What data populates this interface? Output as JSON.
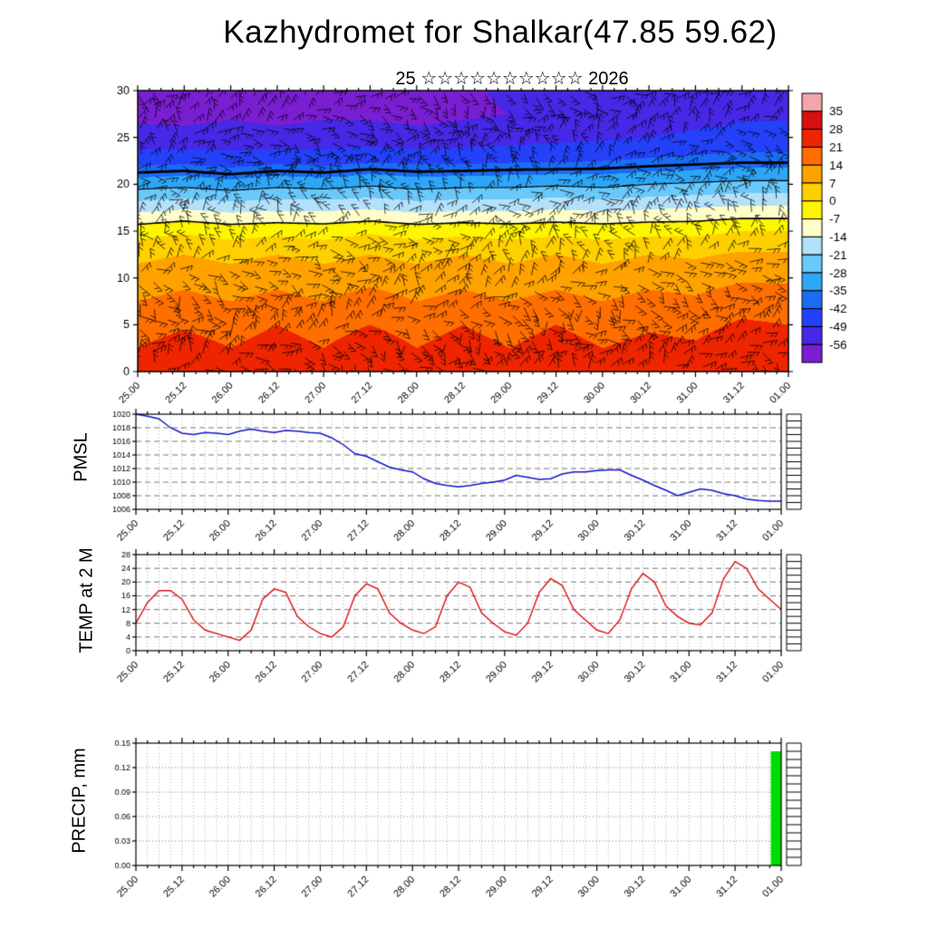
{
  "page": {
    "title": "Kazhydromet for Shalkar(47.85 59.62)",
    "subtitle": "25 ☆☆☆☆☆☆☆☆☆☆ 2026"
  },
  "panels": {
    "pmsl_label": "PMSL",
    "temp_label": "TEMP at 2 M",
    "precip_label": "PRECIP, mm"
  },
  "time_labels": [
    "25.00",
    "25.12",
    "26.00",
    "26.12",
    "27.00",
    "27.12",
    "28.00",
    "28.12",
    "29.00",
    "29.12",
    "30.00",
    "30.12",
    "31.00",
    "31.12",
    "01.00"
  ],
  "chart_data": [
    {
      "type": "heatmap",
      "name": "temperature-height-cross-section",
      "ylim": [
        0,
        30
      ],
      "y_ticks": [
        0,
        5,
        10,
        15,
        20,
        25,
        30
      ],
      "times": [
        "25.00",
        "25.12",
        "26.00",
        "26.12",
        "27.00",
        "27.12",
        "28.00",
        "28.12",
        "29.00",
        "29.12",
        "30.00",
        "30.12",
        "31.00",
        "31.12",
        "01.00"
      ],
      "levels": [
        0,
        2.5,
        5,
        7.5,
        10,
        12.5,
        15,
        17.5,
        20,
        22.5,
        25,
        27.5,
        30
      ],
      "values": [
        [
          24,
          27,
          23,
          27,
          24,
          28,
          24,
          27,
          24,
          27,
          24,
          26,
          25,
          28,
          27
        ],
        [
          21,
          24,
          21,
          24,
          21,
          25,
          21,
          24,
          21,
          24,
          21,
          23,
          22,
          25,
          24
        ],
        [
          18,
          20,
          18,
          21,
          18,
          21,
          18,
          21,
          18,
          21,
          18,
          20,
          19,
          22,
          21
        ],
        [
          14,
          16,
          14,
          16,
          14,
          17,
          14,
          16,
          14,
          16,
          14,
          16,
          15,
          18,
          17
        ],
        [
          10,
          12,
          10,
          12,
          10,
          12,
          10,
          12,
          10,
          12,
          10,
          12,
          11,
          13,
          13
        ],
        [
          5,
          7,
          5,
          7,
          5,
          7,
          5,
          7,
          5,
          7,
          5,
          7,
          6,
          8,
          8
        ],
        [
          -3,
          -1,
          -3,
          -2,
          -3,
          -1,
          -3,
          -2,
          -3,
          -2,
          -3,
          -2,
          -2,
          0,
          0
        ],
        [
          -17,
          -15,
          -17,
          -16,
          -16,
          -15,
          -17,
          -16,
          -16,
          -15,
          -16,
          -15,
          -14,
          -13,
          -13
        ],
        [
          -31,
          -30,
          -32,
          -30,
          -31,
          -29,
          -31,
          -30,
          -30,
          -29,
          -30,
          -28,
          -27,
          -26,
          -26
        ],
        [
          -45,
          -44,
          -46,
          -44,
          -45,
          -43,
          -44,
          -44,
          -43,
          -43,
          -42,
          -41,
          -40,
          -39,
          -39
        ],
        [
          -53,
          -54,
          -53,
          -54,
          -53,
          -53,
          -54,
          -53,
          -52,
          -51,
          -50,
          -49,
          -48,
          -47,
          -47
        ],
        [
          -58,
          -58,
          -57,
          -58,
          -57,
          -57,
          -58,
          -57,
          -56,
          -55,
          -53,
          -52,
          -51,
          -50,
          -50
        ],
        [
          -57,
          -58,
          -57,
          -58,
          -57,
          -57,
          -58,
          -57,
          -55,
          -54,
          -52,
          -51,
          -50,
          -49,
          -49
        ]
      ],
      "thresholds": [
        -56,
        -49,
        -42,
        -35,
        -28,
        -21,
        -14,
        -7,
        0,
        7,
        14,
        21,
        28,
        35
      ],
      "colors_cold_to_warm": [
        "#7a1ed2",
        "#4628e6",
        "#2441fa",
        "#1b6cf5",
        "#2ea6f7",
        "#6ac8fa",
        "#b4e1fa",
        "#fffdc8",
        "#fff500",
        "#ffd000",
        "#ffa200",
        "#ff6e00",
        "#ee2500",
        "#d90f0f",
        "#f2a6aa"
      ],
      "colorbar_tick_labels": [
        "35",
        "28",
        "21",
        "14",
        "7",
        "0",
        "-7",
        "-14",
        "-21",
        "-28",
        "-35",
        "-42",
        "-49",
        "-56"
      ],
      "contours": [
        -7,
        -28,
        -38
      ],
      "overlay": "wind-barbs"
    },
    {
      "type": "line",
      "name": "PMSL",
      "color": "#1414cc",
      "ylim": [
        1006,
        1020
      ],
      "y_ticks": [
        1006,
        1008,
        1010,
        1012,
        1014,
        1016,
        1018,
        1020
      ],
      "y_tick_labels": [
        "1006",
        "1008",
        "1010",
        "1012",
        "1014",
        "1016",
        "1018",
        "1020"
      ],
      "x_step_hours": 3,
      "right_divisions": 14,
      "values": [
        1020,
        1019.7,
        1019.3,
        1018,
        1017.2,
        1017,
        1017.3,
        1017.2,
        1017,
        1017.5,
        1017.8,
        1017.5,
        1017.3,
        1017.6,
        1017.5,
        1017.3,
        1017.2,
        1016.5,
        1015.5,
        1014.2,
        1013.8,
        1013,
        1012.2,
        1011.8,
        1011.5,
        1010.5,
        1009.8,
        1009.5,
        1009.3,
        1009.5,
        1009.8,
        1010,
        1010.3,
        1011,
        1010.7,
        1010.4,
        1010.5,
        1011.2,
        1011.5,
        1011.5,
        1011.7,
        1011.8,
        1011.8,
        1011,
        1010.3,
        1009.5,
        1008.8,
        1008,
        1008.5,
        1009,
        1008.8,
        1008.3,
        1008,
        1007.5,
        1007.3,
        1007.2,
        1007.2
      ]
    },
    {
      "type": "line",
      "name": "TEMP at 2 M",
      "color": "#dd1111",
      "ylim": [
        0,
        28
      ],
      "y_ticks": [
        0,
        4,
        8,
        12,
        16,
        20,
        24,
        28
      ],
      "y_tick_labels": [
        "0",
        "4",
        "8",
        "12",
        "16",
        "20",
        "24",
        "28"
      ],
      "x_step_hours": 3,
      "right_divisions": 14,
      "values": [
        8,
        14,
        17.5,
        17.5,
        15,
        9,
        6,
        5,
        4,
        3,
        6,
        15,
        18,
        17,
        10,
        7,
        5,
        4,
        7,
        16,
        19.5,
        18,
        11,
        8,
        6,
        5,
        7,
        16,
        20,
        18.5,
        11,
        8,
        5.5,
        4.5,
        8,
        17,
        21,
        19,
        12,
        9,
        6,
        5,
        9,
        18,
        22.5,
        20,
        13,
        10,
        8,
        7.5,
        11,
        21,
        26,
        24,
        18,
        15,
        12
      ]
    },
    {
      "type": "bar",
      "name": "PRECIP, mm",
      "color": "#00dd00",
      "ylim": [
        0,
        0.15
      ],
      "y_ticks": [
        0,
        0.03,
        0.06,
        0.09,
        0.12,
        0.15
      ],
      "y_tick_labels": [
        "0.00",
        "0.03",
        "0.06",
        "0.09",
        "0.12",
        "0.15"
      ],
      "x_step_hours": 3,
      "right_divisions": 15,
      "values": [
        0,
        0,
        0,
        0,
        0,
        0,
        0,
        0,
        0,
        0,
        0,
        0,
        0,
        0,
        0,
        0,
        0,
        0,
        0,
        0,
        0,
        0,
        0,
        0,
        0,
        0,
        0,
        0,
        0,
        0,
        0,
        0,
        0,
        0,
        0,
        0,
        0,
        0,
        0,
        0,
        0,
        0,
        0,
        0,
        0,
        0,
        0,
        0,
        0,
        0,
        0,
        0,
        0,
        0,
        0,
        0,
        0.14
      ]
    }
  ]
}
